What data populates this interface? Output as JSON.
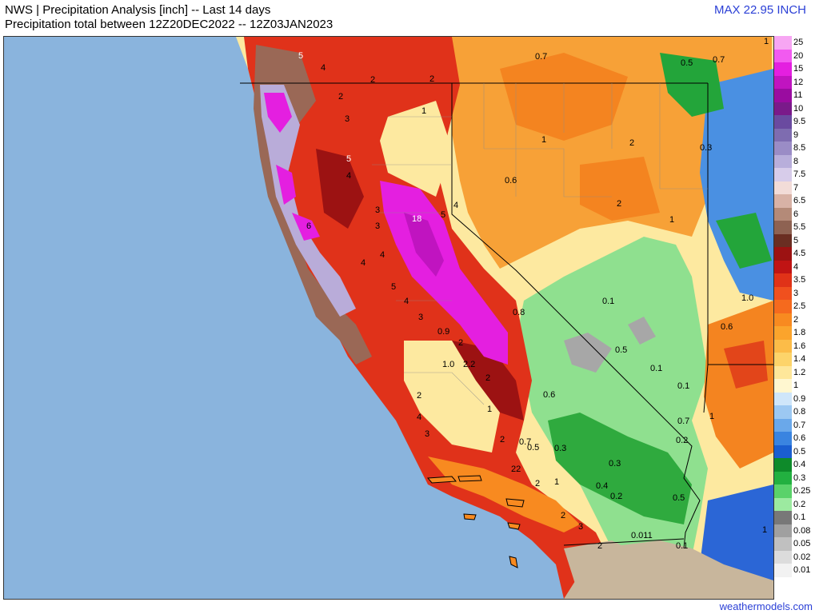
{
  "header": {
    "line1": "NWS | Precipitation Analysis [inch] -- Last 14 days",
    "line2": "Precipitation total between 12Z20DEC2022 -- 12Z03JAN2023",
    "max": "MAX 22.95 INCH"
  },
  "credit": "weathermodels.com",
  "legend": [
    {
      "label": "25",
      "color": "#f7a6f3"
    },
    {
      "label": "20",
      "color": "#f25af0"
    },
    {
      "label": "15",
      "color": "#e41fe0"
    },
    {
      "label": "12",
      "color": "#c014c0"
    },
    {
      "label": "11",
      "color": "#9a0ca0"
    },
    {
      "label": "10",
      "color": "#7a1a8a"
    },
    {
      "label": "9.5",
      "color": "#6a4aa0"
    },
    {
      "label": "9",
      "color": "#7e6cb0"
    },
    {
      "label": "8.5",
      "color": "#9a8cc6"
    },
    {
      "label": "8",
      "color": "#b8aedb"
    },
    {
      "label": "7.5",
      "color": "#d7ccea"
    },
    {
      "label": "7",
      "color": "#f2dcd8"
    },
    {
      "label": "6.5",
      "color": "#d8b2a6"
    },
    {
      "label": "6",
      "color": "#b48a78"
    },
    {
      "label": "5.5",
      "color": "#8e6252"
    },
    {
      "label": "5",
      "color": "#6a2e22"
    },
    {
      "label": "4.5",
      "color": "#9c1212"
    },
    {
      "label": "4",
      "color": "#c01414"
    },
    {
      "label": "3.5",
      "color": "#e03218"
    },
    {
      "label": "3",
      "color": "#f0501e"
    },
    {
      "label": "2.5",
      "color": "#f56a1e"
    },
    {
      "label": "2",
      "color": "#f88a20"
    },
    {
      "label": "1.8",
      "color": "#fba42c"
    },
    {
      "label": "1.6",
      "color": "#fcbc48"
    },
    {
      "label": "1.4",
      "color": "#fdd46a"
    },
    {
      "label": "1.2",
      "color": "#fee79a"
    },
    {
      "label": "1",
      "color": "#fff7d0"
    },
    {
      "label": "0.9",
      "color": "#cfe6fa"
    },
    {
      "label": "0.8",
      "color": "#9cc8f2"
    },
    {
      "label": "0.7",
      "color": "#6aa8ea"
    },
    {
      "label": "0.6",
      "color": "#3a84e0"
    },
    {
      "label": "0.5",
      "color": "#1a5ed0"
    },
    {
      "label": "0.4",
      "color": "#0e8a2a"
    },
    {
      "label": "0.3",
      "color": "#22b040"
    },
    {
      "label": "0.25",
      "color": "#5ad26a"
    },
    {
      "label": "0.2",
      "color": "#9ceaa0"
    },
    {
      "label": "0.1",
      "color": "#787878"
    },
    {
      "label": "0.08",
      "color": "#a0a0a0"
    },
    {
      "label": "0.05",
      "color": "#c0c0c0"
    },
    {
      "label": "0.02",
      "color": "#dcdcdc"
    },
    {
      "label": "0.01",
      "color": "#f2f2f2"
    }
  ],
  "map_labels": [
    {
      "text": "5"
    },
    {
      "text": "4"
    },
    {
      "text": "2"
    },
    {
      "text": "2"
    },
    {
      "text": "1"
    },
    {
      "text": "2"
    },
    {
      "text": "3"
    },
    {
      "text": "5"
    },
    {
      "text": "4"
    },
    {
      "text": "3"
    },
    {
      "text": "18"
    },
    {
      "text": "5"
    },
    {
      "text": "4"
    },
    {
      "text": "3"
    },
    {
      "text": "6"
    },
    {
      "text": "4"
    },
    {
      "text": "4"
    },
    {
      "text": "5"
    },
    {
      "text": "4"
    },
    {
      "text": "3"
    },
    {
      "text": "0.9"
    },
    {
      "text": "2"
    },
    {
      "text": "1.0"
    },
    {
      "text": "2.2"
    },
    {
      "text": "2"
    },
    {
      "text": "1"
    },
    {
      "text": "2"
    },
    {
      "text": "4"
    },
    {
      "text": "3"
    },
    {
      "text": "2"
    },
    {
      "text": "0.7"
    },
    {
      "text": "0.5"
    },
    {
      "text": "0.3"
    },
    {
      "text": "0.8"
    },
    {
      "text": "0.6"
    },
    {
      "text": "0.6"
    },
    {
      "text": "0.7"
    },
    {
      "text": "0.5"
    },
    {
      "text": "0.7"
    },
    {
      "text": "1"
    },
    {
      "text": "2"
    },
    {
      "text": "0.3"
    },
    {
      "text": "2"
    },
    {
      "text": "1"
    },
    {
      "text": "0.1"
    },
    {
      "text": "0.5"
    },
    {
      "text": "0.1"
    },
    {
      "text": "0.7"
    },
    {
      "text": "1"
    },
    {
      "text": "0.2"
    },
    {
      "text": "0.3"
    },
    {
      "text": "0.4"
    },
    {
      "text": "0.2"
    },
    {
      "text": "0.5"
    },
    {
      "text": "0.1"
    },
    {
      "text": "1.0"
    },
    {
      "text": "0.6"
    },
    {
      "text": "1"
    },
    {
      "text": "1"
    },
    {
      "text": "22"
    },
    {
      "text": "2"
    },
    {
      "text": "1"
    },
    {
      "text": "2"
    },
    {
      "text": "3"
    },
    {
      "text": "2"
    },
    {
      "text": "0.011"
    },
    {
      "text": "0.1"
    }
  ]
}
